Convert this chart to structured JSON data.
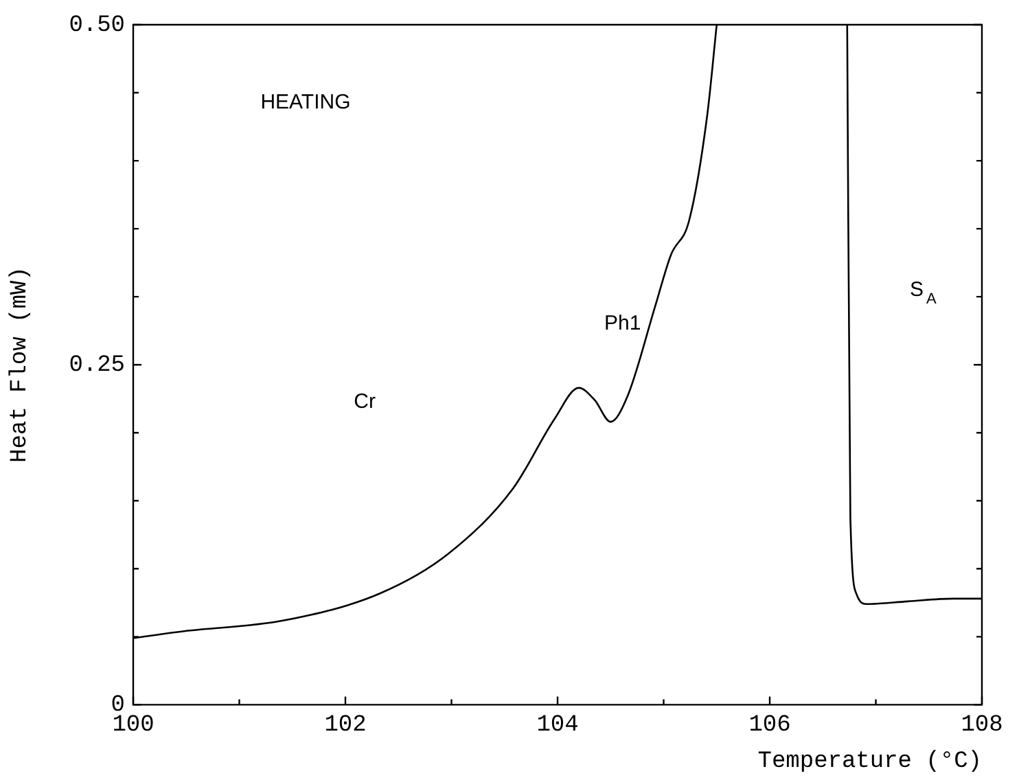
{
  "chart_data": {
    "type": "line",
    "xlabel": "Temperature (°C)",
    "ylabel": "Heat Flow (mW)",
    "xlim": [
      100,
      108
    ],
    "ylim": [
      0,
      0.5
    ],
    "xticks": [
      100,
      {
        "value": 101,
        "label": null
      },
      102,
      {
        "value": 103,
        "label": null
      },
      104,
      {
        "value": 105,
        "label": null
      },
      106,
      {
        "value": 107,
        "label": null
      },
      108
    ],
    "yticks": [
      {
        "value": 0,
        "label": "0"
      },
      {
        "value": 0.05,
        "label": null
      },
      {
        "value": 0.1,
        "label": null
      },
      {
        "value": 0.15,
        "label": null
      },
      {
        "value": 0.2,
        "label": null
      },
      {
        "value": 0.25,
        "label": "0.25"
      },
      {
        "value": 0.3,
        "label": null
      },
      {
        "value": 0.35,
        "label": null
      },
      {
        "value": 0.4,
        "label": null
      },
      {
        "value": 0.45,
        "label": null
      },
      {
        "value": 0.5,
        "label": "0.50"
      }
    ],
    "x": [
      100,
      100.47,
      101.42,
      102.33,
      102.97,
      103.58,
      103.97,
      104.2,
      104.35,
      104.5,
      104.66,
      104.92,
      105.07,
      105.24,
      105.41,
      105.5,
      105.9,
      106.73,
      106.76,
      106.82,
      106.91,
      107.3,
      107.73,
      108
    ],
    "series": [
      {
        "color": "#000000",
        "values": [
          0.049,
          0.054,
          0.062,
          0.082,
          0.111,
          0.159,
          0.21,
          0.233,
          0.224,
          0.208,
          0.227,
          0.293,
          0.331,
          0.356,
          0.433,
          0.5,
          null,
          0.5,
          0.137,
          0.081,
          0.074,
          0.076,
          0.078,
          0.078
        ]
      }
    ],
    "marker": "none",
    "line_style": "solid",
    "annotations": [
      "HEATING",
      "Cr",
      "Ph1",
      "S$_{A}$"
    ]
  }
}
